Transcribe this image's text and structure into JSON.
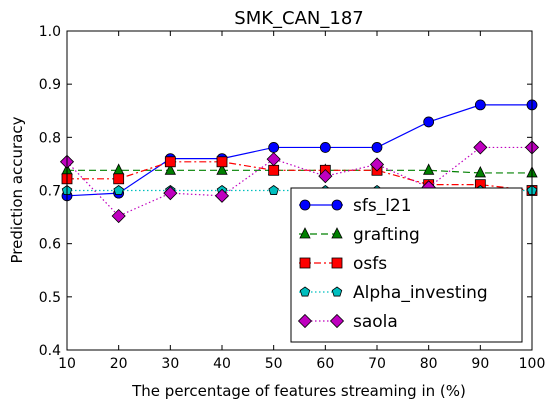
{
  "chart_data": {
    "type": "line",
    "title": "SMK_CAN_187",
    "xlabel": "The percentage of features streaming in (%)",
    "ylabel": "Prediction accuracy",
    "xlim": [
      10,
      100
    ],
    "ylim": [
      0.4,
      1.0
    ],
    "x_ticks": [
      "10",
      "20",
      "30",
      "40",
      "50",
      "60",
      "70",
      "80",
      "90",
      "100"
    ],
    "y_ticks": [
      "0.4",
      "0.5",
      "0.6",
      "0.7",
      "0.8",
      "0.9",
      "1.0"
    ],
    "grid": false,
    "legend_position": "lower-right",
    "x": [
      10,
      20,
      30,
      40,
      50,
      60,
      70,
      80,
      90,
      100
    ],
    "series": [
      {
        "name": "sfs_l21",
        "color": "#0000ff",
        "dash": "solid",
        "marker": "circle",
        "values": [
          0.69,
          0.695,
          0.76,
          0.76,
          0.781,
          0.781,
          0.781,
          0.829,
          0.861,
          0.861
        ]
      },
      {
        "name": "grafting",
        "color": "#008000",
        "dash": "dashed",
        "marker": "triangle",
        "values": [
          0.738,
          0.738,
          0.738,
          0.738,
          0.738,
          0.738,
          0.738,
          0.738,
          0.733,
          0.733
        ]
      },
      {
        "name": "osfs",
        "color": "#ff0000",
        "dash": "dashdot",
        "marker": "square",
        "values": [
          0.722,
          0.722,
          0.754,
          0.754,
          0.738,
          0.738,
          0.738,
          0.711,
          0.711,
          0.7
        ]
      },
      {
        "name": "Alpha_investing",
        "color": "#00bfbf",
        "dash": "dotted",
        "marker": "pentagon",
        "values": [
          0.7,
          0.7,
          0.7,
          0.7,
          0.7,
          0.7,
          0.7,
          0.7,
          0.7,
          0.7
        ]
      },
      {
        "name": "saola",
        "color": "#bf00bf",
        "dash": "dotted",
        "marker": "diamond",
        "values": [
          0.754,
          0.652,
          0.695,
          0.69,
          0.759,
          0.727,
          0.749,
          0.706,
          0.781,
          0.781
        ]
      }
    ]
  }
}
